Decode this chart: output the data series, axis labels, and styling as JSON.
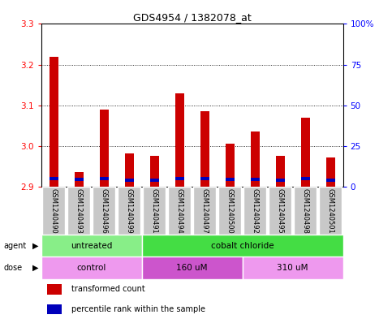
{
  "title": "GDS4954 / 1382078_at",
  "samples": [
    "GSM1240490",
    "GSM1240493",
    "GSM1240496",
    "GSM1240499",
    "GSM1240491",
    "GSM1240494",
    "GSM1240497",
    "GSM1240500",
    "GSM1240492",
    "GSM1240495",
    "GSM1240498",
    "GSM1240501"
  ],
  "red_values": [
    3.22,
    2.935,
    3.09,
    2.982,
    2.975,
    3.13,
    3.085,
    3.005,
    3.035,
    2.975,
    3.07,
    2.972
  ],
  "blue_heights": [
    0.008,
    0.008,
    0.008,
    0.008,
    0.008,
    0.008,
    0.008,
    0.008,
    0.008,
    0.008,
    0.008,
    0.008
  ],
  "blue_bottoms": [
    2.915,
    2.913,
    2.915,
    2.912,
    2.912,
    2.915,
    2.915,
    2.913,
    2.913,
    2.912,
    2.915,
    2.912
  ],
  "ymin": 2.9,
  "ymax": 3.3,
  "yticks": [
    2.9,
    3.0,
    3.1,
    3.2,
    3.3
  ],
  "y2ticks": [
    0,
    25,
    50,
    75,
    100
  ],
  "y2labels": [
    "0",
    "25",
    "50",
    "75",
    "100%"
  ],
  "agent_groups": [
    {
      "label": "untreated",
      "start": 0,
      "end": 4,
      "color": "#88ee88"
    },
    {
      "label": "cobalt chloride",
      "start": 4,
      "end": 12,
      "color": "#44dd44"
    }
  ],
  "dose_groups": [
    {
      "label": "control",
      "start": 0,
      "end": 4,
      "color": "#ee99ee"
    },
    {
      "label": "160 uM",
      "start": 4,
      "end": 8,
      "color": "#cc55cc"
    },
    {
      "label": "310 uM",
      "start": 8,
      "end": 12,
      "color": "#ee99ee"
    }
  ],
  "bar_color_red": "#cc0000",
  "bar_color_blue": "#0000bb",
  "bar_width": 0.35,
  "xlabelbox_color": "#c8c8c8",
  "plot_bg": "#ffffff",
  "legend_red": "transformed count",
  "legend_blue": "percentile rank within the sample"
}
